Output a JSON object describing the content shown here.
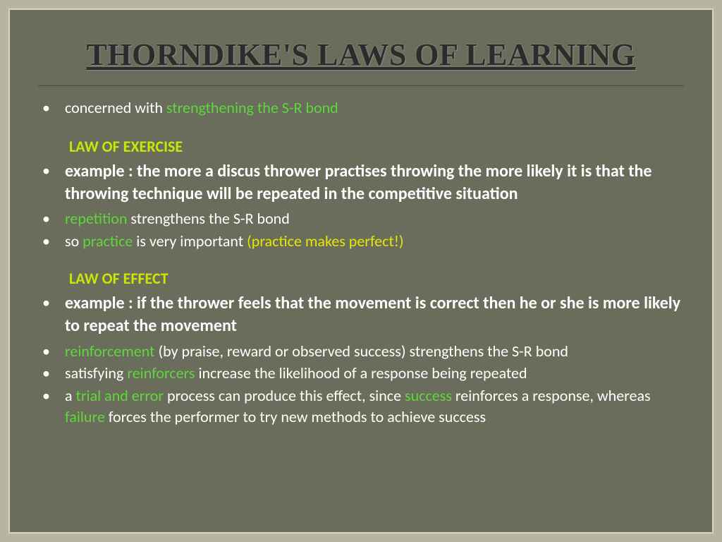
{
  "title": "THORNDIKE'S LAWS OF LEARNING",
  "colors": {
    "outer_background": "#b8b4a0",
    "slide_background": "#6b6d5c",
    "frame_border": "#d8d5c8",
    "divider": "#4a4c3e",
    "title_text": "#2c2c2c",
    "body_white": "#ffffff",
    "accent_green": "#5fd63c",
    "accent_yellow": "#e6e600",
    "heading_olive": "#cbe600"
  },
  "typography": {
    "title_font": "Times New Roman",
    "title_size_pt": 44,
    "title_weight": "bold",
    "title_underline": true,
    "body_font": "Calibri",
    "body_size_pt": 22,
    "example_size_pt": 24,
    "heading_size_pt": 22,
    "heading_weight": "bold"
  },
  "bullet1": {
    "p1": "concerned with ",
    "p2": "strengthening the S-R bond"
  },
  "heading_exercise": "LAW OF EXERCISE",
  "ex_example": "example : the more a discus thrower practises throwing the more likely it is that the throwing technique will be repeated in the competitive situation",
  "ex_rep": {
    "p1": "repetition",
    "p2": " strengthens the S-R bond"
  },
  "ex_practice": {
    "p1": "so ",
    "p2": "practice",
    "p3": " is very important ",
    "p4": "(practice makes perfect!)"
  },
  "heading_effect": "LAW OF EFFECT",
  "ef_example": "example : if the thrower feels that the movement is correct then he or she is more likely to repeat the movement",
  "ef_reinf": {
    "p1": "reinforcement",
    "p2": " (by praise, reward or observed success) strengthens the S-R bond"
  },
  "ef_satisfy": {
    "p1": "satisfying ",
    "p2": "reinforcers",
    "p3": " increase the likelihood of a response being repeated"
  },
  "ef_trial": {
    "p1": "a ",
    "p2": "trial and error",
    "p3": " process can produce this effect, since ",
    "p4": "success",
    "p5": " reinforces a response, whereas ",
    "p6": "failure",
    "p7": " forces the performer to try new methods to achieve success"
  }
}
